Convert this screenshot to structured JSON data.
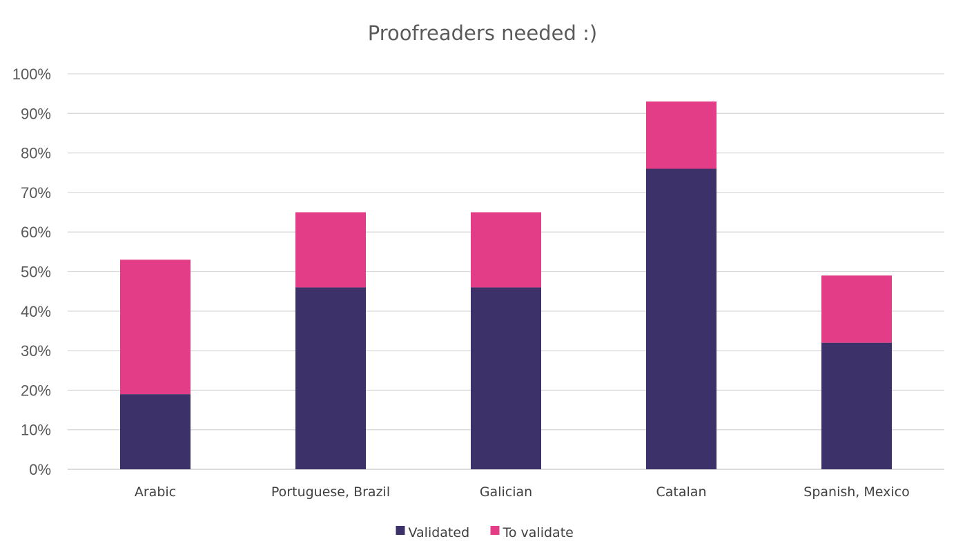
{
  "chart_data": {
    "type": "bar",
    "stacked": true,
    "title": "Proofreaders needed :)",
    "xlabel": "",
    "ylabel": "",
    "categories": [
      "Arabic",
      "Portuguese, Brazil",
      "Galician",
      "Catalan",
      "Spanish, Mexico"
    ],
    "series": [
      {
        "name": "Validated",
        "color": "#3c3269",
        "values": [
          19,
          46,
          46,
          76,
          32
        ]
      },
      {
        "name": "To validate",
        "color": "#e33d87",
        "values": [
          34,
          19,
          19,
          17,
          17
        ]
      }
    ],
    "ylim": [
      0,
      100
    ],
    "yticks": [
      "0%",
      "10%",
      "20%",
      "30%",
      "40%",
      "50%",
      "60%",
      "70%",
      "80%",
      "90%",
      "100%"
    ],
    "grid": true,
    "legend_position": "bottom"
  }
}
